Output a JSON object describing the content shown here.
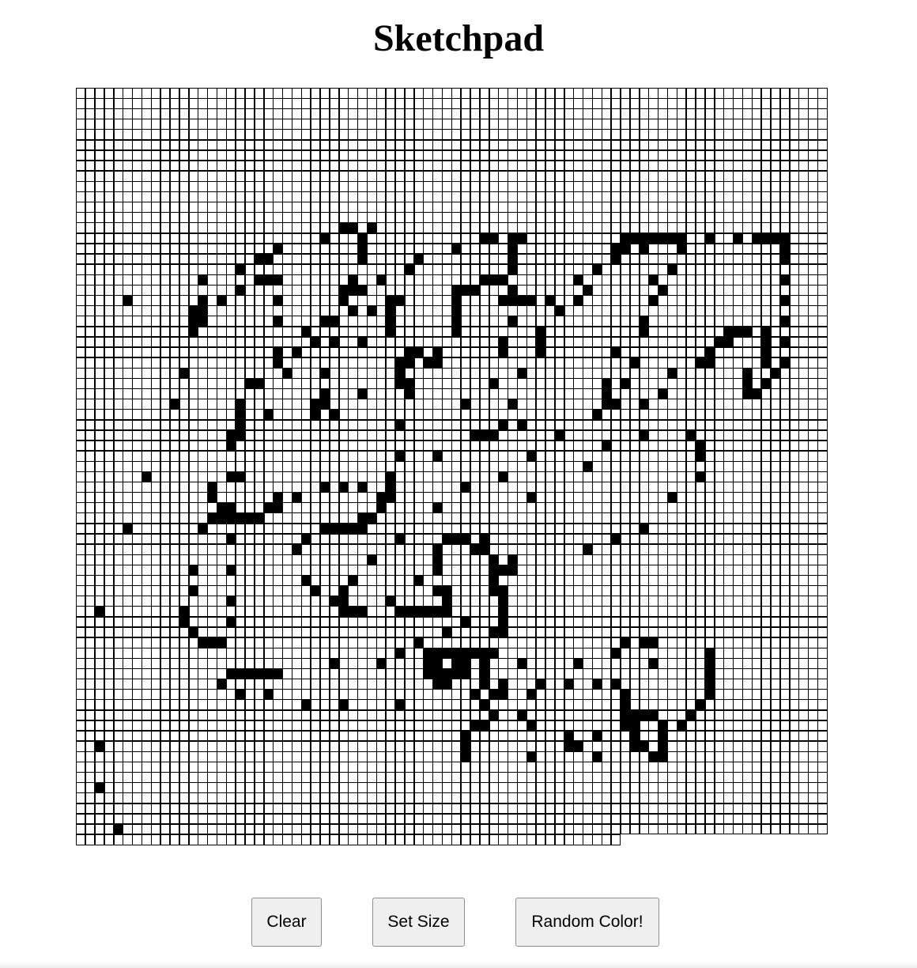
{
  "page": {
    "title": "Sketchpad"
  },
  "grid": {
    "columns": 80,
    "full_rows": 72,
    "last_row_cells": 58,
    "cell_color": "#ffffff",
    "paint_color": "#000000",
    "border_color": "#000000",
    "painted": {
      "13": [
        [
          28,
          29
        ],
        [
          31,
          31
        ]
      ],
      "14": [
        [
          26,
          26
        ],
        [
          30,
          30
        ],
        [
          43,
          44
        ],
        [
          46,
          47
        ],
        [
          58,
          64
        ],
        [
          67,
          67
        ],
        [
          70,
          70
        ],
        [
          72,
          75
        ]
      ],
      "15": [
        [
          21,
          21
        ],
        [
          30,
          30
        ],
        [
          40,
          40
        ],
        [
          46,
          46
        ],
        [
          57,
          58
        ],
        [
          60,
          60
        ],
        [
          64,
          64
        ],
        [
          75,
          75
        ]
      ],
      "16": [
        [
          19,
          20
        ],
        [
          30,
          30
        ],
        [
          36,
          36
        ],
        [
          46,
          46
        ],
        [
          57,
          57
        ],
        [
          75,
          75
        ]
      ],
      "17": [
        [
          17,
          17
        ],
        [
          35,
          35
        ],
        [
          46,
          46
        ],
        [
          55,
          55
        ],
        [
          63,
          63
        ]
      ],
      "18": [
        [
          13,
          13
        ],
        [
          19,
          21
        ],
        [
          29,
          29
        ],
        [
          32,
          32
        ],
        [
          43,
          45
        ],
        [
          53,
          53
        ],
        [
          61,
          61
        ],
        [
          75,
          75
        ]
      ],
      "19": [
        [
          17,
          17
        ],
        [
          28,
          30
        ],
        [
          40,
          42
        ],
        [
          46,
          46
        ],
        [
          54,
          54
        ],
        [
          62,
          62
        ]
      ],
      "20": [
        [
          5,
          5
        ],
        [
          13,
          13
        ],
        [
          15,
          15
        ],
        [
          21,
          21
        ],
        [
          28,
          28
        ],
        [
          33,
          34
        ],
        [
          40,
          40
        ],
        [
          45,
          48
        ],
        [
          50,
          50
        ],
        [
          53,
          53
        ],
        [
          61,
          61
        ],
        [
          75,
          75
        ]
      ],
      "21": [
        [
          12,
          13
        ],
        [
          29,
          29
        ],
        [
          31,
          31
        ],
        [
          33,
          33
        ],
        [
          40,
          40
        ],
        [
          51,
          51
        ]
      ],
      "22": [
        [
          12,
          13
        ],
        [
          21,
          21
        ],
        [
          26,
          27
        ],
        [
          33,
          33
        ],
        [
          40,
          40
        ],
        [
          46,
          46
        ],
        [
          60,
          60
        ],
        [
          75,
          75
        ]
      ],
      "23": [
        [
          12,
          12
        ],
        [
          24,
          24
        ],
        [
          33,
          33
        ],
        [
          40,
          40
        ],
        [
          49,
          49
        ],
        [
          60,
          60
        ],
        [
          69,
          71
        ],
        [
          73,
          73
        ]
      ],
      "24": [
        [
          25,
          25
        ],
        [
          27,
          27
        ],
        [
          30,
          30
        ],
        [
          45,
          45
        ],
        [
          49,
          49
        ],
        [
          68,
          69
        ],
        [
          73,
          73
        ],
        [
          75,
          75
        ]
      ],
      "25": [
        [
          21,
          21
        ],
        [
          23,
          23
        ],
        [
          35,
          36
        ],
        [
          38,
          38
        ],
        [
          45,
          45
        ],
        [
          49,
          49
        ],
        [
          57,
          57
        ],
        [
          67,
          67
        ],
        [
          73,
          73
        ]
      ],
      "26": [
        [
          21,
          21
        ],
        [
          34,
          35
        ],
        [
          37,
          38
        ],
        [
          59,
          59
        ],
        [
          66,
          67
        ],
        [
          73,
          73
        ],
        [
          75,
          75
        ]
      ],
      "27": [
        [
          11,
          11
        ],
        [
          22,
          22
        ],
        [
          26,
          26
        ],
        [
          34,
          34
        ],
        [
          47,
          47
        ],
        [
          63,
          63
        ],
        [
          71,
          71
        ],
        [
          74,
          74
        ]
      ],
      "28": [
        [
          18,
          19
        ],
        [
          34,
          35
        ],
        [
          44,
          44
        ],
        [
          56,
          56
        ],
        [
          58,
          58
        ],
        [
          71,
          71
        ],
        [
          73,
          73
        ]
      ],
      "29": [
        [
          26,
          26
        ],
        [
          30,
          30
        ],
        [
          35,
          35
        ],
        [
          56,
          56
        ],
        [
          62,
          62
        ],
        [
          71,
          72
        ]
      ],
      "30": [
        [
          10,
          10
        ],
        [
          17,
          17
        ],
        [
          25,
          26
        ],
        [
          41,
          41
        ],
        [
          46,
          46
        ],
        [
          56,
          57
        ],
        [
          60,
          60
        ]
      ],
      "31": [
        [
          17,
          17
        ],
        [
          20,
          20
        ],
        [
          25,
          25
        ],
        [
          27,
          27
        ],
        [
          55,
          55
        ]
      ],
      "32": [
        [
          17,
          17
        ],
        [
          34,
          34
        ],
        [
          45,
          45
        ],
        [
          47,
          47
        ]
      ],
      "33": [
        [
          16,
          17
        ],
        [
          42,
          44
        ],
        [
          51,
          51
        ],
        [
          60,
          60
        ],
        [
          65,
          65
        ]
      ],
      "34": [
        [
          16,
          16
        ],
        [
          56,
          56
        ],
        [
          66,
          66
        ]
      ],
      "35": [
        [
          34,
          34
        ],
        [
          38,
          38
        ],
        [
          48,
          48
        ],
        [
          66,
          66
        ]
      ],
      "36": [
        [
          54,
          54
        ]
      ],
      "37": [
        [
          7,
          7
        ],
        [
          16,
          17
        ],
        [
          33,
          33
        ],
        [
          45,
          45
        ],
        [
          66,
          66
        ]
      ],
      "38": [
        [
          14,
          14
        ],
        [
          26,
          26
        ],
        [
          28,
          28
        ],
        [
          30,
          30
        ],
        [
          33,
          33
        ],
        [
          41,
          41
        ]
      ],
      "39": [
        [
          14,
          14
        ],
        [
          21,
          21
        ],
        [
          23,
          23
        ],
        [
          32,
          33
        ],
        [
          48,
          48
        ],
        [
          63,
          63
        ]
      ],
      "40": [
        [
          15,
          16
        ],
        [
          20,
          21
        ],
        [
          32,
          32
        ],
        [
          38,
          38
        ]
      ],
      "41": [
        [
          14,
          19
        ],
        [
          30,
          31
        ]
      ],
      "42": [
        [
          5,
          5
        ],
        [
          13,
          13
        ],
        [
          26,
          30
        ],
        [
          60,
          60
        ]
      ],
      "43": [
        [
          16,
          16
        ],
        [
          24,
          24
        ],
        [
          34,
          34
        ],
        [
          39,
          41
        ],
        [
          43,
          43
        ],
        [
          57,
          57
        ]
      ],
      "44": [
        [
          23,
          23
        ],
        [
          38,
          38
        ],
        [
          42,
          43
        ],
        [
          54,
          54
        ]
      ],
      "45": [
        [
          31,
          31
        ],
        [
          38,
          38
        ],
        [
          44,
          44
        ],
        [
          46,
          46
        ]
      ],
      "46": [
        [
          12,
          12
        ],
        [
          16,
          16
        ],
        [
          38,
          38
        ],
        [
          44,
          46
        ]
      ],
      "47": [
        [
          24,
          24
        ],
        [
          29,
          29
        ],
        [
          36,
          36
        ],
        [
          44,
          44
        ]
      ],
      "48": [
        [
          12,
          12
        ],
        [
          25,
          25
        ],
        [
          28,
          28
        ],
        [
          38,
          39
        ],
        [
          44,
          45
        ]
      ],
      "49": [
        [
          16,
          16
        ],
        [
          27,
          28
        ],
        [
          33,
          33
        ],
        [
          39,
          39
        ],
        [
          45,
          45
        ]
      ],
      "50": [
        [
          2,
          2
        ],
        [
          11,
          11
        ],
        [
          28,
          30
        ],
        [
          34,
          39
        ],
        [
          45,
          45
        ]
      ],
      "51": [
        [
          11,
          11
        ],
        [
          16,
          16
        ],
        [
          41,
          41
        ],
        [
          45,
          45
        ]
      ],
      "52": [
        [
          12,
          12
        ],
        [
          39,
          39
        ],
        [
          44,
          45
        ]
      ],
      "53": [
        [
          13,
          15
        ],
        [
          36,
          36
        ],
        [
          58,
          58
        ],
        [
          60,
          61
        ]
      ],
      "54": [
        [
          34,
          34
        ],
        [
          37,
          44
        ],
        [
          57,
          57
        ],
        [
          67,
          67
        ]
      ],
      "55": [
        [
          27,
          27
        ],
        [
          32,
          32
        ],
        [
          37,
          38
        ],
        [
          40,
          41
        ],
        [
          43,
          43
        ],
        [
          47,
          47
        ],
        [
          53,
          53
        ],
        [
          61,
          61
        ],
        [
          67,
          67
        ]
      ],
      "56": [
        [
          16,
          20
        ],
        [
          21,
          21
        ],
        [
          37,
          41
        ],
        [
          43,
          43
        ],
        [
          67,
          67
        ]
      ],
      "57": [
        [
          15,
          15
        ],
        [
          38,
          39
        ],
        [
          43,
          43
        ],
        [
          45,
          45
        ],
        [
          49,
          49
        ],
        [
          52,
          52
        ],
        [
          55,
          55
        ],
        [
          57,
          57
        ],
        [
          67,
          67
        ]
      ],
      "58": [
        [
          17,
          17
        ],
        [
          20,
          20
        ],
        [
          42,
          42
        ],
        [
          44,
          45
        ],
        [
          48,
          48
        ],
        [
          58,
          58
        ],
        [
          67,
          67
        ]
      ],
      "59": [
        [
          24,
          24
        ],
        [
          28,
          28
        ],
        [
          34,
          34
        ],
        [
          43,
          43
        ],
        [
          58,
          58
        ],
        [
          66,
          66
        ]
      ],
      "60": [
        [
          44,
          44
        ],
        [
          47,
          47
        ],
        [
          58,
          61
        ],
        [
          65,
          65
        ]
      ],
      "61": [
        [
          42,
          43
        ],
        [
          48,
          48
        ],
        [
          58,
          59
        ],
        [
          62,
          62
        ],
        [
          64,
          64
        ]
      ],
      "62": [
        [
          41,
          41
        ],
        [
          52,
          52
        ],
        [
          55,
          55
        ],
        [
          59,
          59
        ],
        [
          62,
          62
        ]
      ],
      "63": [
        [
          2,
          2
        ],
        [
          41,
          41
        ],
        [
          52,
          53
        ],
        [
          59,
          60
        ],
        [
          62,
          62
        ]
      ],
      "64": [
        [
          41,
          41
        ],
        [
          48,
          48
        ],
        [
          55,
          55
        ],
        [
          61,
          62
        ]
      ],
      "67": [
        [
          2,
          2
        ]
      ],
      "71": [
        [
          4,
          4
        ]
      ]
    }
  },
  "buttons": {
    "clear": "Clear",
    "set_size": "Set Size",
    "random_color": "Random Color!"
  }
}
